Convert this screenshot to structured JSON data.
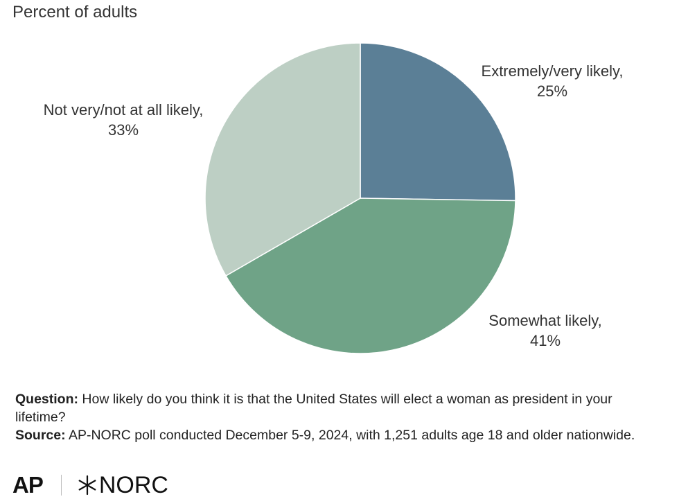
{
  "chart_data": {
    "type": "pie",
    "title": "",
    "subtitle": "Percent of adults",
    "slices": [
      {
        "label": "Extremely/very likely,",
        "value": 25,
        "value_label": "25%",
        "color": "#5b7f96"
      },
      {
        "label": "Somewhat likely,",
        "value": 41,
        "value_label": "41%",
        "color": "#6fa387"
      },
      {
        "label": "Not very/not at all likely,",
        "value": 33,
        "value_label": "33%",
        "color": "#bdcfc4"
      }
    ],
    "start": "12 o'clock",
    "direction": "clockwise",
    "legend": "none (direct labels)"
  },
  "notes": {
    "question_label": "Question:",
    "question_text": " How likely do you think it is that the United States will elect a woman as president in your lifetime?",
    "source_label": "Source:",
    "source_text": " AP-NORC poll conducted December 5-9, 2024, with 1,251 adults age 18 and older nationwide."
  },
  "logos": {
    "ap": "AP",
    "norc": "NORC"
  }
}
